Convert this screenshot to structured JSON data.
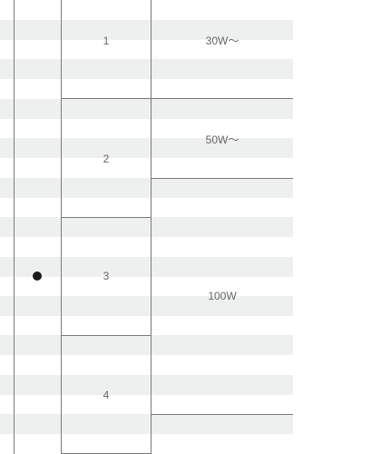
{
  "table": {
    "rows": [
      {
        "number": "1",
        "wattage": "30W～",
        "selected": false
      },
      {
        "number": "2",
        "wattage": "50W～",
        "selected": false
      },
      {
        "number": "3",
        "wattage": "100W",
        "selected": true
      },
      {
        "number": "4",
        "wattage": "",
        "selected": false
      }
    ]
  }
}
